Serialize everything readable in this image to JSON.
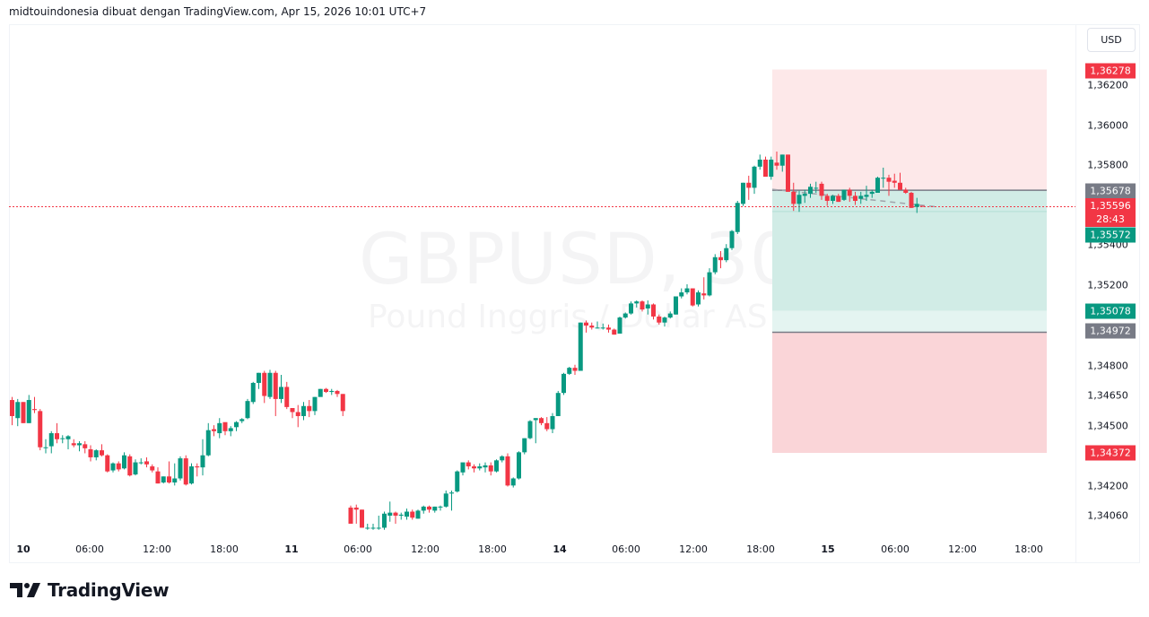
{
  "header": {
    "attribution": "midtouindonesia dibuat dengan TradingView.com, Apr 15, 2026 10:01 UTC+7"
  },
  "watermark": {
    "symbol": "GBPUSD, 30",
    "description": "Pound Inggris / Dollar AS"
  },
  "price_axis": {
    "currency_button": "USD",
    "ticks": [
      "1,36200",
      "1,36000",
      "1,35800",
      "1,35400",
      "1,35200",
      "1,34800",
      "1,34650",
      "1,34500",
      "1,34200",
      "1,34060"
    ],
    "labels": [
      {
        "name": "target-price-label",
        "text": "1,36278",
        "color": "#f23645"
      },
      {
        "name": "entry-price-label",
        "text": "1,35678",
        "color": "#787b86"
      },
      {
        "name": "last-price-label",
        "text": "1,35596",
        "countdown": "28:43",
        "color": "#f23645"
      },
      {
        "name": "prev-close-label",
        "text": "1,35572",
        "color": "#089981"
      },
      {
        "name": "level-label",
        "text": "1,35078",
        "color": "#089981"
      },
      {
        "name": "level-label-2",
        "text": "1,34972",
        "color": "#787b86"
      },
      {
        "name": "stop-price-label",
        "text": "1,34372",
        "color": "#f23645"
      }
    ]
  },
  "time_axis": {
    "ticks": [
      {
        "label": "10",
        "bold": true
      },
      {
        "label": "06:00",
        "bold": false
      },
      {
        "label": "12:00",
        "bold": false
      },
      {
        "label": "18:00",
        "bold": false
      },
      {
        "label": "11",
        "bold": true
      },
      {
        "label": "06:00",
        "bold": false
      },
      {
        "label": "12:00",
        "bold": false
      },
      {
        "label": "18:00",
        "bold": false
      },
      {
        "label": "14",
        "bold": true
      },
      {
        "label": "06:00",
        "bold": false
      },
      {
        "label": "12:00",
        "bold": false
      },
      {
        "label": "18:00",
        "bold": false
      },
      {
        "label": "15",
        "bold": true
      },
      {
        "label": "06:00",
        "bold": false
      },
      {
        "label": "12:00",
        "bold": false
      },
      {
        "label": "18:00",
        "bold": false
      }
    ]
  },
  "branding": {
    "logo_text": "TradingView"
  },
  "colors": {
    "up": "#089981",
    "down": "#f23645",
    "target_zone": "#fde8e9",
    "profit_zone": "#d1ece6",
    "profit_zone_light": "#e4f4f1",
    "stop_zone": "#fad5d8",
    "entry_line": "#787b86",
    "last_price_line": "#f23645"
  },
  "chart_data": {
    "type": "candlestick",
    "title": "GBPUSD, 30",
    "subtitle": "Pound Inggris / Dollar AS",
    "xlabel": "",
    "ylabel": "USD",
    "ylim": [
      1.3395,
      1.3648
    ],
    "grid": false,
    "x_ticks": [
      "10",
      "06:00",
      "12:00",
      "18:00",
      "11",
      "06:00",
      "12:00",
      "18:00",
      "14",
      "06:00",
      "12:00",
      "18:00",
      "15",
      "06:00",
      "12:00",
      "18:00"
    ],
    "last_price": 1.35596,
    "countdown": "28:43",
    "position_tool": {
      "type": "short",
      "entry": 1.35678,
      "target": 1.36278,
      "stop_zone_top": 1.34972,
      "stop": 1.34372,
      "levels": [
        1.35572,
        1.35078
      ]
    },
    "candles_ohlc": [
      [
        1.34635,
        1.3465,
        1.3451,
        1.34555
      ],
      [
        1.34545,
        1.3464,
        1.34505,
        1.34625
      ],
      [
        1.34625,
        1.34625,
        1.3452,
        1.3452
      ],
      [
        1.3452,
        1.3466,
        1.3452,
        1.34635
      ],
      [
        1.3459,
        1.3465,
        1.3457,
        1.34585
      ],
      [
        1.3458,
        1.3459,
        1.34385,
        1.344
      ],
      [
        1.344,
        1.3444,
        1.3437,
        1.344
      ],
      [
        1.34405,
        1.3448,
        1.3437,
        1.3447
      ],
      [
        1.3447,
        1.3452,
        1.3442,
        1.3444
      ],
      [
        1.34445,
        1.3446,
        1.3442,
        1.34445
      ],
      [
        1.3444,
        1.3446,
        1.3439,
        1.34455
      ],
      [
        1.3442,
        1.3444,
        1.344,
        1.3441
      ],
      [
        1.3441,
        1.3443,
        1.3438,
        1.3442
      ],
      [
        1.34415,
        1.3443,
        1.3437,
        1.34395
      ],
      [
        1.3439,
        1.3441,
        1.3433,
        1.3435
      ],
      [
        1.3435,
        1.3439,
        1.34335,
        1.34385
      ],
      [
        1.34385,
        1.34415,
        1.34355,
        1.3436
      ],
      [
        1.3436,
        1.34365,
        1.34275,
        1.3428
      ],
      [
        1.34285,
        1.34325,
        1.34275,
        1.3432
      ],
      [
        1.3432,
        1.3433,
        1.3428,
        1.3429
      ],
      [
        1.34295,
        1.34375,
        1.3429,
        1.3436
      ],
      [
        1.34355,
        1.34365,
        1.34255,
        1.3426
      ],
      [
        1.34265,
        1.3434,
        1.3426,
        1.34325
      ],
      [
        1.34325,
        1.34345,
        1.34315,
        1.34325
      ],
      [
        1.3433,
        1.3435,
        1.343,
        1.34315
      ],
      [
        1.34305,
        1.34315,
        1.34275,
        1.34285
      ],
      [
        1.3428,
        1.343,
        1.3422,
        1.3422
      ],
      [
        1.34225,
        1.34255,
        1.3422,
        1.34255
      ],
      [
        1.34255,
        1.3433,
        1.3422,
        1.34225
      ],
      [
        1.34225,
        1.3432,
        1.3421,
        1.34245
      ],
      [
        1.34245,
        1.34355,
        1.34235,
        1.34345
      ],
      [
        1.34345,
        1.3436,
        1.3421,
        1.34215
      ],
      [
        1.3422,
        1.3432,
        1.34215,
        1.34305
      ],
      [
        1.34305,
        1.3432,
        1.34255,
        1.343
      ],
      [
        1.343,
        1.3444,
        1.3426,
        1.3436
      ],
      [
        1.3436,
        1.3452,
        1.34355,
        1.34485
      ],
      [
        1.3449,
        1.3451,
        1.34455,
        1.3448
      ],
      [
        1.3447,
        1.34545,
        1.34445,
        1.3452
      ],
      [
        1.34525,
        1.3452,
        1.3446,
        1.3448
      ],
      [
        1.3448,
        1.34505,
        1.34455,
        1.34495
      ],
      [
        1.345,
        1.3453,
        1.3448,
        1.34525
      ],
      [
        1.3453,
        1.34545,
        1.3452,
        1.3454
      ],
      [
        1.34545,
        1.3464,
        1.3454,
        1.3463
      ],
      [
        1.34625,
        1.34725,
        1.34615,
        1.3472
      ],
      [
        1.3472,
        1.3477,
        1.3469,
        1.3477
      ],
      [
        1.3477,
        1.3478,
        1.3462,
        1.34655
      ],
      [
        1.3465,
        1.34785,
        1.3464,
        1.3477
      ],
      [
        1.3477,
        1.3478,
        1.34555,
        1.3464
      ],
      [
        1.3464,
        1.3476,
        1.3462,
        1.347
      ],
      [
        1.347,
        1.34725,
        1.3459,
        1.346
      ],
      [
        1.34595,
        1.34595,
        1.34545,
        1.34575
      ],
      [
        1.34575,
        1.3461,
        1.345,
        1.34555
      ],
      [
        1.34555,
        1.34625,
        1.34535,
        1.34605
      ],
      [
        1.34605,
        1.34635,
        1.3455,
        1.3458
      ],
      [
        1.3458,
        1.3465,
        1.3456,
        1.3465
      ],
      [
        1.3465,
        1.3469,
        1.3466,
        1.3469
      ],
      [
        1.3469,
        1.34695,
        1.3467,
        1.34675
      ],
      [
        1.34675,
        1.3469,
        1.3466,
        1.3468
      ],
      [
        1.3468,
        1.34685,
        1.3465,
        1.34665
      ],
      [
        1.34665,
        1.34665,
        1.34555,
        1.3458
      ],
      [
        1.341,
        1.3411,
        1.3402,
        1.3402
      ],
      [
        1.341,
        1.34115,
        1.3402,
        1.3409
      ],
      [
        1.3409,
        1.3409,
        1.34,
        1.34
      ],
      [
        1.34,
        1.3402,
        1.3399,
        1.34
      ],
      [
        1.34,
        1.3402,
        1.3399,
        1.34
      ],
      [
        1.34,
        1.3406,
        1.3399,
        1.34
      ],
      [
        1.34,
        1.3408,
        1.3399,
        1.3407
      ],
      [
        1.3406,
        1.3413,
        1.3403,
        1.34075
      ],
      [
        1.34075,
        1.3408,
        1.3402,
        1.3406
      ],
      [
        1.3406,
        1.34075,
        1.3404,
        1.34065
      ],
      [
        1.34055,
        1.34095,
        1.3404,
        1.3408
      ],
      [
        1.3408,
        1.3409,
        1.3404,
        1.3405
      ],
      [
        1.34045,
        1.3409,
        1.34045,
        1.34085
      ],
      [
        1.34085,
        1.3411,
        1.3407,
        1.34105
      ],
      [
        1.34105,
        1.3411,
        1.34075,
        1.3409
      ],
      [
        1.34085,
        1.34105,
        1.34075,
        1.34105
      ],
      [
        1.34105,
        1.3411,
        1.34085,
        1.34105
      ],
      [
        1.34105,
        1.34185,
        1.341,
        1.3417
      ],
      [
        1.3417,
        1.34185,
        1.34085,
        1.34175
      ],
      [
        1.3418,
        1.34285,
        1.34175,
        1.3428
      ],
      [
        1.34275,
        1.3432,
        1.3426,
        1.34325
      ],
      [
        1.34325,
        1.34335,
        1.3429,
        1.34305
      ],
      [
        1.34305,
        1.34315,
        1.34275,
        1.34295
      ],
      [
        1.34295,
        1.3432,
        1.34285,
        1.34305
      ],
      [
        1.343,
        1.34325,
        1.34275,
        1.3431
      ],
      [
        1.3431,
        1.34325,
        1.3426,
        1.3428
      ],
      [
        1.3428,
        1.3434,
        1.34275,
        1.34335
      ],
      [
        1.34335,
        1.3436,
        1.34325,
        1.34355
      ],
      [
        1.34355,
        1.3437,
        1.34205,
        1.3421
      ],
      [
        1.3421,
        1.3425,
        1.342,
        1.34245
      ],
      [
        1.34245,
        1.3438,
        1.3424,
        1.34375
      ],
      [
        1.34375,
        1.34445,
        1.34365,
        1.34445
      ],
      [
        1.34445,
        1.34535,
        1.3444,
        1.3453
      ],
      [
        1.34535,
        1.34545,
        1.3442,
        1.34545
      ],
      [
        1.34545,
        1.3455,
        1.3451,
        1.3452
      ],
      [
        1.3452,
        1.3455,
        1.3448,
        1.3449
      ],
      [
        1.3449,
        1.3457,
        1.3447,
        1.34555
      ],
      [
        1.34555,
        1.3468,
        1.34555,
        1.3467
      ],
      [
        1.3467,
        1.3477,
        1.3466,
        1.34765
      ],
      [
        1.34765,
        1.348,
        1.3476,
        1.34795
      ],
      [
        1.34795,
        1.3481,
        1.3476,
        1.3478
      ],
      [
        1.3478,
        1.3502,
        1.3478,
        1.3502
      ],
      [
        1.3502,
        1.3503,
        1.3497,
        1.35005
      ],
      [
        1.35005,
        1.3502,
        1.34985,
        1.34995
      ],
      [
        1.34995,
        1.35025,
        1.3499,
        1.34995
      ],
      [
        1.34995,
        1.35015,
        1.34985,
        1.34995
      ],
      [
        1.34995,
        1.3501,
        1.3497,
        1.34985
      ],
      [
        1.34985,
        1.3499,
        1.3496,
        1.3496
      ],
      [
        1.34965,
        1.3505,
        1.34965,
        1.35045
      ],
      [
        1.35045,
        1.3507,
        1.3504,
        1.35065
      ],
      [
        1.35065,
        1.35125,
        1.3506,
        1.35115
      ],
      [
        1.35115,
        1.3513,
        1.35095,
        1.35125
      ],
      [
        1.35125,
        1.3513,
        1.35075,
        1.35085
      ],
      [
        1.3509,
        1.3513,
        1.3506,
        1.3511
      ],
      [
        1.3511,
        1.35115,
        1.35035,
        1.3505
      ],
      [
        1.3505,
        1.3506,
        1.3501,
        1.3502
      ],
      [
        1.3502,
        1.3505,
        1.35,
        1.35045
      ],
      [
        1.35045,
        1.35075,
        1.3504,
        1.35065
      ],
      [
        1.3506,
        1.3515,
        1.3506,
        1.3515
      ],
      [
        1.3515,
        1.3519,
        1.3514,
        1.3517
      ],
      [
        1.3517,
        1.3521,
        1.3516,
        1.3519
      ],
      [
        1.3519,
        1.3519,
        1.351,
        1.35105
      ],
      [
        1.3511,
        1.3518,
        1.351,
        1.3517
      ],
      [
        1.35165,
        1.35245,
        1.35135,
        1.35155
      ],
      [
        1.35155,
        1.3529,
        1.3515,
        1.3527
      ],
      [
        1.3527,
        1.3536,
        1.3526,
        1.35345
      ],
      [
        1.35345,
        1.35375,
        1.3529,
        1.3533
      ],
      [
        1.3533,
        1.3541,
        1.3532,
        1.3539
      ],
      [
        1.3539,
        1.3548,
        1.3538,
        1.35475
      ],
      [
        1.3547,
        1.35625,
        1.3546,
        1.35615
      ],
      [
        1.3561,
        1.35715,
        1.356,
        1.35715
      ],
      [
        1.35715,
        1.3575,
        1.3563,
        1.3569
      ],
      [
        1.3569,
        1.358,
        1.3566,
        1.35795
      ],
      [
        1.35795,
        1.35855,
        1.3578,
        1.3583
      ],
      [
        1.3583,
        1.35845,
        1.35745,
        1.35745
      ],
      [
        1.35745,
        1.35845,
        1.3573,
        1.3583
      ],
      [
        1.35815,
        1.3587,
        1.3578,
        1.358
      ],
      [
        1.358,
        1.35855,
        1.3577,
        1.35855
      ],
      [
        1.35855,
        1.35855,
        1.3567,
        1.3567
      ],
      [
        1.3567,
        1.35715,
        1.35575,
        1.3561
      ],
      [
        1.3561,
        1.35675,
        1.3557,
        1.35655
      ],
      [
        1.3565,
        1.3568,
        1.35615,
        1.3566
      ],
      [
        1.3566,
        1.3571,
        1.3564,
        1.35695
      ],
      [
        1.3569,
        1.3572,
        1.35665,
        1.3569
      ],
      [
        1.3571,
        1.3572,
        1.3563,
        1.3565
      ],
      [
        1.3565,
        1.3566,
        1.356,
        1.35625
      ],
      [
        1.35625,
        1.35655,
        1.3561,
        1.3565
      ],
      [
        1.3565,
        1.3566,
        1.3562,
        1.3562
      ],
      [
        1.3563,
        1.3568,
        1.35625,
        1.3568
      ],
      [
        1.3568,
        1.3569,
        1.3562,
        1.3565
      ],
      [
        1.3565,
        1.3567,
        1.35605,
        1.35625
      ],
      [
        1.35635,
        1.3567,
        1.3561,
        1.3565
      ],
      [
        1.35645,
        1.357,
        1.35625,
        1.35655
      ],
      [
        1.3566,
        1.3568,
        1.3564,
        1.3567
      ],
      [
        1.35665,
        1.35745,
        1.35665,
        1.3574
      ],
      [
        1.3574,
        1.3579,
        1.3569,
        1.3574
      ],
      [
        1.3574,
        1.35755,
        1.3565,
        1.3572
      ],
      [
        1.35725,
        1.3576,
        1.3569,
        1.35715
      ],
      [
        1.35715,
        1.35765,
        1.3568,
        1.3568
      ],
      [
        1.3568,
        1.3569,
        1.3566,
        1.35665
      ],
      [
        1.35665,
        1.3567,
        1.3559,
        1.3559
      ],
      [
        1.35595,
        1.3564,
        1.35565,
        1.3561
      ],
      [
        1.356,
        1.356,
        1.35596,
        1.35596
      ]
    ]
  }
}
